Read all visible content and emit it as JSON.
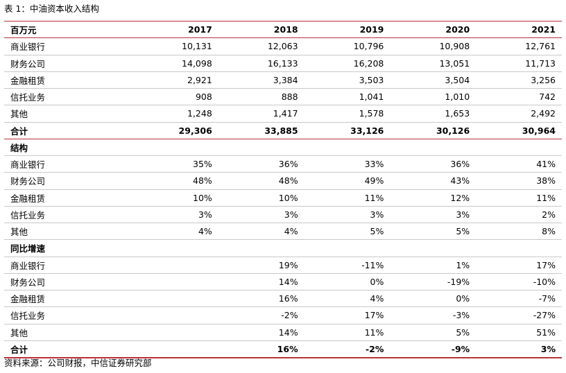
{
  "caption": "表 1：中油资本收入结构",
  "source": "资料来源：公司财报，中信证券研究部",
  "header": {
    "unit": "百万元",
    "years": [
      "2017",
      "2018",
      "2019",
      "2020",
      "2021"
    ]
  },
  "revenue_rows": [
    {
      "label": "商业银行",
      "values": [
        "10,131",
        "12,063",
        "10,796",
        "10,908",
        "12,761"
      ]
    },
    {
      "label": "财务公司",
      "values": [
        "14,098",
        "16,133",
        "16,208",
        "13,051",
        "11,713"
      ]
    },
    {
      "label": "金融租赁",
      "values": [
        "2,921",
        "3,384",
        "3,503",
        "3,504",
        "3,256"
      ]
    },
    {
      "label": "信托业务",
      "values": [
        "908",
        "888",
        "1,041",
        "1,010",
        "742"
      ]
    },
    {
      "label": "其他",
      "values": [
        "1,248",
        "1,417",
        "1,578",
        "1,653",
        "2,492"
      ]
    }
  ],
  "revenue_total": {
    "label": "合计",
    "values": [
      "29,306",
      "33,885",
      "33,126",
      "30,126",
      "30,964"
    ]
  },
  "structure_section": "结构",
  "structure_rows": [
    {
      "label": "商业银行",
      "values": [
        "35%",
        "36%",
        "33%",
        "36%",
        "41%"
      ]
    },
    {
      "label": "财务公司",
      "values": [
        "48%",
        "48%",
        "49%",
        "43%",
        "38%"
      ]
    },
    {
      "label": "金融租赁",
      "values": [
        "10%",
        "10%",
        "11%",
        "12%",
        "11%"
      ]
    },
    {
      "label": "信托业务",
      "values": [
        "3%",
        "3%",
        "3%",
        "3%",
        "2%"
      ]
    },
    {
      "label": "其他",
      "values": [
        "4%",
        "4%",
        "5%",
        "5%",
        "8%"
      ]
    }
  ],
  "growth_section": "同比增速",
  "growth_rows": [
    {
      "label": "商业银行",
      "values": [
        "",
        "19%",
        "-11%",
        "1%",
        "17%"
      ]
    },
    {
      "label": "财务公司",
      "values": [
        "",
        "14%",
        "0%",
        "-19%",
        "-10%"
      ]
    },
    {
      "label": "金融租赁",
      "values": [
        "",
        "16%",
        "4%",
        "0%",
        "-7%"
      ]
    },
    {
      "label": "信托业务",
      "values": [
        "",
        "-2%",
        "17%",
        "-3%",
        "-27%"
      ]
    },
    {
      "label": "其他",
      "values": [
        "",
        "14%",
        "11%",
        "5%",
        "51%"
      ]
    }
  ],
  "growth_total": {
    "label": "合计",
    "values": [
      "",
      "16%",
      "-2%",
      "-9%",
      "3%"
    ]
  }
}
